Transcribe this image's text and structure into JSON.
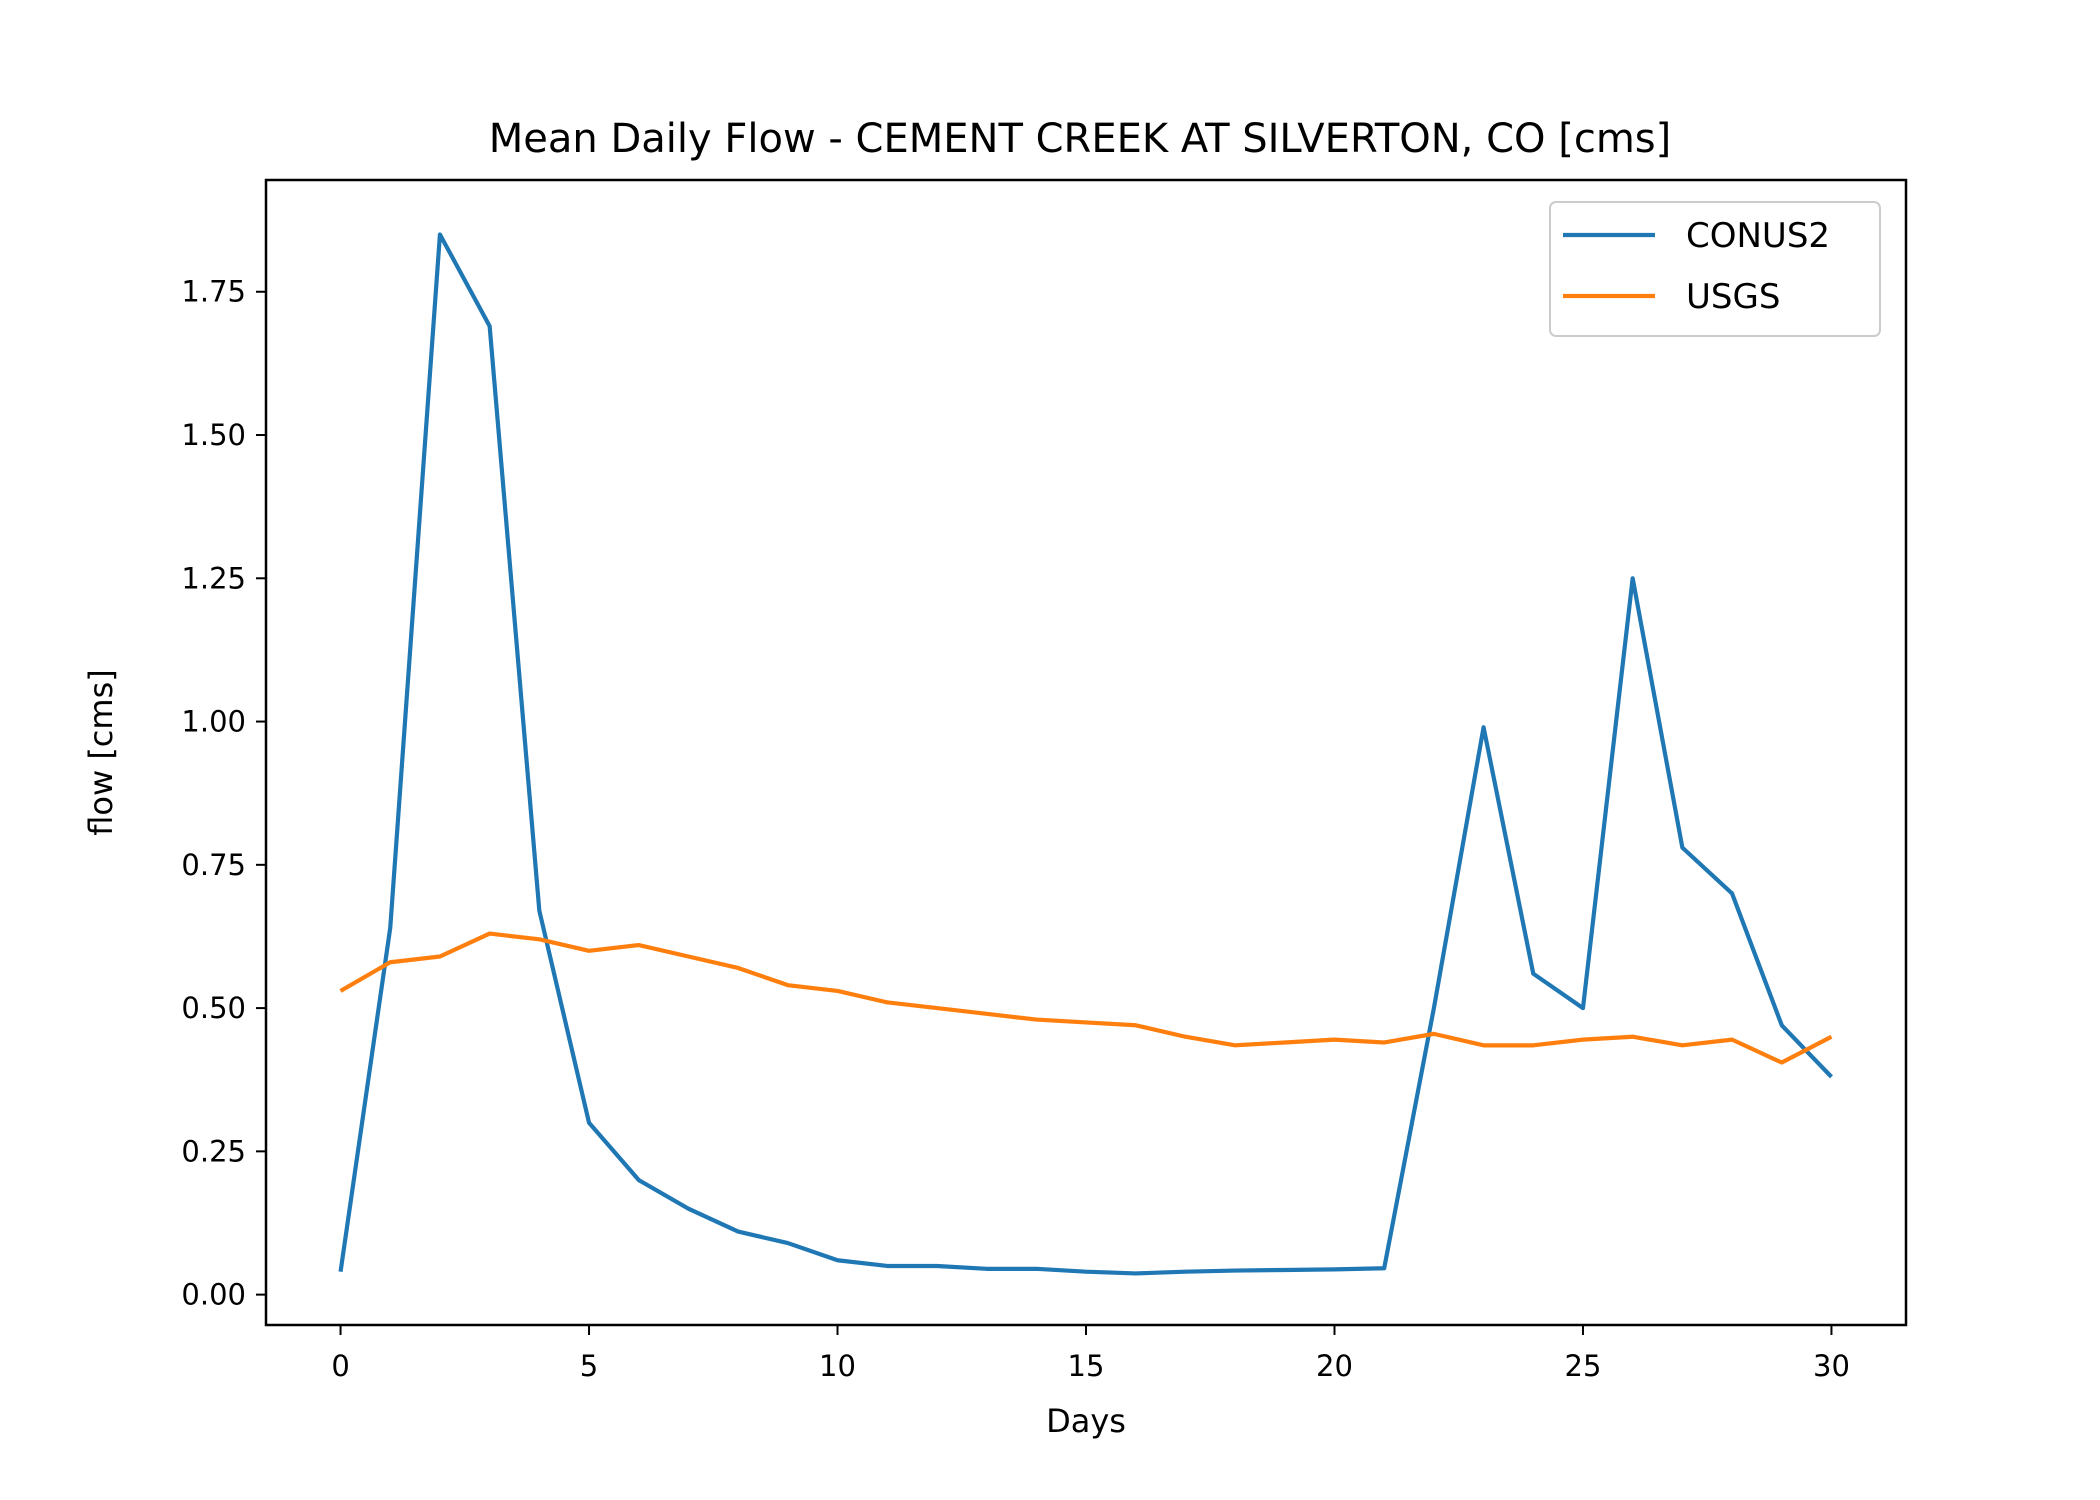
{
  "chart_data": {
    "type": "line",
    "title": "Mean Daily Flow - CEMENT CREEK AT SILVERTON, CO [cms]",
    "xlabel": "Days",
    "ylabel": "flow [cms]",
    "xlim": [
      -1.5,
      31.5
    ],
    "ylim": [
      -0.053,
      1.945
    ],
    "xticks": [
      0,
      5,
      10,
      15,
      20,
      25,
      30
    ],
    "xtick_labels": [
      "0",
      "5",
      "10",
      "15",
      "20",
      "25",
      "30"
    ],
    "yticks": [
      0.0,
      0.25,
      0.5,
      0.75,
      1.0,
      1.25,
      1.5,
      1.75
    ],
    "ytick_labels": [
      "0.00",
      "0.25",
      "0.50",
      "0.75",
      "1.00",
      "1.25",
      "1.50",
      "1.75"
    ],
    "grid": false,
    "legend_position": "top-right",
    "x": [
      0,
      1,
      2,
      3,
      4,
      5,
      6,
      7,
      8,
      9,
      10,
      11,
      12,
      13,
      14,
      15,
      16,
      17,
      18,
      19,
      20,
      21,
      22,
      23,
      24,
      25,
      26,
      27,
      28,
      29,
      30
    ],
    "series": [
      {
        "name": "CONUS2",
        "color": "#1f77b4",
        "values": [
          0.04,
          0.64,
          1.85,
          1.69,
          0.67,
          0.3,
          0.2,
          0.15,
          0.11,
          0.09,
          0.06,
          0.05,
          0.05,
          0.045,
          0.045,
          0.04,
          0.037,
          0.04,
          0.042,
          0.043,
          0.044,
          0.046,
          0.5,
          0.99,
          0.56,
          0.5,
          1.25,
          0.78,
          0.7,
          0.47,
          0.38
        ]
      },
      {
        "name": "USGS",
        "color": "#ff7f0e",
        "values": [
          0.53,
          0.58,
          0.59,
          0.63,
          0.62,
          0.6,
          0.61,
          0.59,
          0.57,
          0.54,
          0.53,
          0.51,
          0.5,
          0.49,
          0.48,
          0.475,
          0.47,
          0.45,
          0.435,
          0.44,
          0.445,
          0.44,
          0.455,
          0.435,
          0.435,
          0.445,
          0.45,
          0.435,
          0.445,
          0.405,
          0.45
        ]
      }
    ]
  }
}
